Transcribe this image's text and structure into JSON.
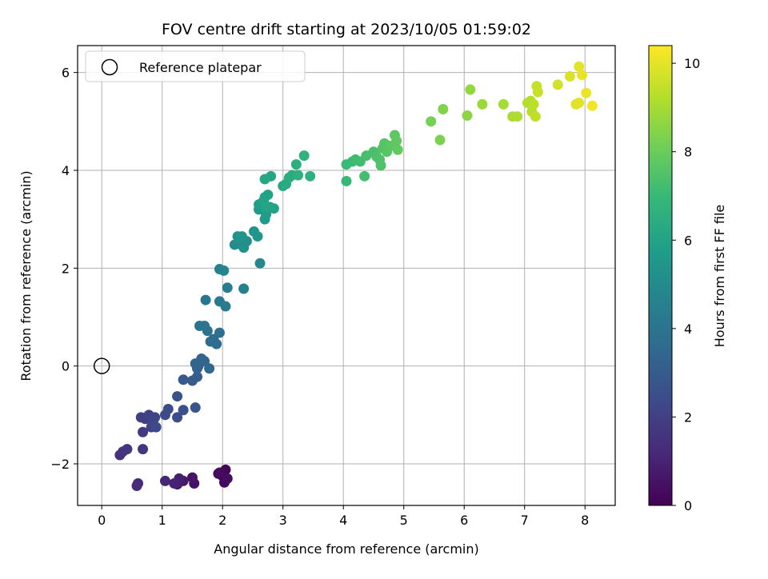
{
  "chart_data": {
    "type": "scatter",
    "title": "FOV centre drift starting at 2023/10/05 01:59:02",
    "xlabel": "Angular distance from reference (arcmin)",
    "ylabel": "Rotation from reference (arcmin)",
    "xlim": [
      -0.4,
      8.5
    ],
    "ylim": [
      -2.85,
      6.55
    ],
    "x_ticks": [
      0,
      1,
      2,
      3,
      4,
      5,
      6,
      7,
      8
    ],
    "y_ticks": [
      -2,
      0,
      2,
      4,
      6
    ],
    "y_tick_labels": [
      "−2",
      "0",
      "2",
      "4",
      "6"
    ],
    "grid": true,
    "legend": {
      "location": "upper-left",
      "entries": [
        "Reference platepar"
      ]
    },
    "reference_point": {
      "x": 0,
      "y": 0,
      "label": "Reference platepar",
      "marker": "hollow-circle"
    },
    "colorbar": {
      "label": "Hours from first FF file",
      "range": [
        0,
        10.4
      ],
      "ticks": [
        0,
        2,
        4,
        6,
        8,
        10
      ],
      "colormap": "viridis",
      "colors": [
        "#440154",
        "#482878",
        "#3e4989",
        "#31688e",
        "#26828e",
        "#1f9e89",
        "#35b779",
        "#6ece58",
        "#b5de2b",
        "#fde725"
      ]
    },
    "series": [
      {
        "color_by": "hours",
        "points": [
          [
            1.93,
            -2.2,
            0.05
          ],
          [
            2.0,
            -2.25,
            0.1
          ],
          [
            2.05,
            -2.12,
            0.15
          ],
          [
            2.03,
            -2.38,
            0.2
          ],
          [
            1.95,
            -2.18,
            0.3
          ],
          [
            2.08,
            -2.3,
            0.35
          ],
          [
            1.53,
            -2.4,
            0.5
          ],
          [
            1.5,
            -2.28,
            0.6
          ],
          [
            1.35,
            -2.35,
            0.7
          ],
          [
            1.25,
            -2.42,
            0.8
          ],
          [
            1.28,
            -2.3,
            0.9
          ],
          [
            1.2,
            -2.4,
            1.0
          ],
          [
            1.05,
            -2.35,
            1.1
          ],
          [
            0.6,
            -2.4,
            1.2
          ],
          [
            0.58,
            -2.45,
            1.3
          ],
          [
            0.3,
            -1.82,
            1.5
          ],
          [
            0.35,
            -1.75,
            1.55
          ],
          [
            0.42,
            -1.7,
            1.6
          ],
          [
            0.68,
            -1.7,
            1.7
          ],
          [
            0.68,
            -1.35,
            1.8
          ],
          [
            0.72,
            -1.08,
            1.9
          ],
          [
            0.65,
            -1.05,
            2.0
          ],
          [
            0.78,
            -1.0,
            2.05
          ],
          [
            0.82,
            -1.25,
            2.1
          ],
          [
            0.88,
            -1.05,
            2.15
          ],
          [
            0.85,
            -1.15,
            2.2
          ],
          [
            0.9,
            -1.25,
            2.3
          ],
          [
            1.05,
            -1.0,
            2.35
          ],
          [
            1.1,
            -0.88,
            2.4
          ],
          [
            1.25,
            -1.05,
            2.5
          ],
          [
            1.35,
            -0.9,
            2.55
          ],
          [
            1.25,
            -0.62,
            2.65
          ],
          [
            1.55,
            -0.85,
            2.75
          ],
          [
            1.35,
            -0.28,
            2.9
          ],
          [
            1.5,
            -0.3,
            3.0
          ],
          [
            1.58,
            -0.22,
            3.1
          ],
          [
            1.58,
            -0.05,
            3.2
          ],
          [
            1.6,
            0.0,
            3.25
          ],
          [
            1.55,
            0.05,
            3.3
          ],
          [
            1.65,
            0.15,
            3.35
          ],
          [
            1.7,
            0.1,
            3.4
          ],
          [
            1.78,
            -0.05,
            3.5
          ],
          [
            1.8,
            0.5,
            3.6
          ],
          [
            1.85,
            0.55,
            3.65
          ],
          [
            1.9,
            0.45,
            3.7
          ],
          [
            1.95,
            0.68,
            3.8
          ],
          [
            1.75,
            0.72,
            3.85
          ],
          [
            1.7,
            0.82,
            3.95
          ],
          [
            1.62,
            0.82,
            4.0
          ],
          [
            1.72,
            1.35,
            4.1
          ],
          [
            1.95,
            1.32,
            4.2
          ],
          [
            2.05,
            1.22,
            4.3
          ],
          [
            2.08,
            1.6,
            4.4
          ],
          [
            2.35,
            1.58,
            4.5
          ],
          [
            1.95,
            1.98,
            4.6
          ],
          [
            2.02,
            1.95,
            4.7
          ],
          [
            2.62,
            2.1,
            4.85
          ],
          [
            2.25,
            2.5,
            5.0
          ],
          [
            2.2,
            2.48,
            5.05
          ],
          [
            2.28,
            2.58,
            5.1
          ],
          [
            2.35,
            2.42,
            5.2
          ],
          [
            2.4,
            2.55,
            5.25
          ],
          [
            2.25,
            2.65,
            5.3
          ],
          [
            2.32,
            2.65,
            5.35
          ],
          [
            2.52,
            2.75,
            5.4
          ],
          [
            2.58,
            2.65,
            5.45
          ],
          [
            2.6,
            3.2,
            5.6
          ],
          [
            2.65,
            3.3,
            5.65
          ],
          [
            2.7,
            3.0,
            5.7
          ],
          [
            2.72,
            3.1,
            5.75
          ],
          [
            2.78,
            3.25,
            5.8
          ],
          [
            2.6,
            3.3,
            5.85
          ],
          [
            2.7,
            3.45,
            5.9
          ],
          [
            2.75,
            3.5,
            5.95
          ],
          [
            2.85,
            3.22,
            6.0
          ],
          [
            2.68,
            3.38,
            6.05
          ],
          [
            2.73,
            3.25,
            6.1
          ],
          [
            2.8,
            3.88,
            6.15
          ],
          [
            2.7,
            3.82,
            6.2
          ],
          [
            3.0,
            3.68,
            6.3
          ],
          [
            3.05,
            3.72,
            6.35
          ],
          [
            3.1,
            3.85,
            6.4
          ],
          [
            3.15,
            3.9,
            6.45
          ],
          [
            3.22,
            4.12,
            6.5
          ],
          [
            3.25,
            3.9,
            6.55
          ],
          [
            3.45,
            3.88,
            6.6
          ],
          [
            3.35,
            4.3,
            6.7
          ],
          [
            4.05,
            3.78,
            7.0
          ],
          [
            4.05,
            4.12,
            7.05
          ],
          [
            4.15,
            4.18,
            7.1
          ],
          [
            4.2,
            4.22,
            7.15
          ],
          [
            4.28,
            4.18,
            7.2
          ],
          [
            4.35,
            3.88,
            7.25
          ],
          [
            4.38,
            4.3,
            7.3
          ],
          [
            4.5,
            4.38,
            7.35
          ],
          [
            4.55,
            4.28,
            7.4
          ],
          [
            4.6,
            4.22,
            7.45
          ],
          [
            4.62,
            4.1,
            7.5
          ],
          [
            4.65,
            4.45,
            7.55
          ],
          [
            4.68,
            4.55,
            7.6
          ],
          [
            4.72,
            4.38,
            7.65
          ],
          [
            4.78,
            4.5,
            7.7
          ],
          [
            4.85,
            4.72,
            7.75
          ],
          [
            4.88,
            4.6,
            7.8
          ],
          [
            4.9,
            4.42,
            7.85
          ],
          [
            5.45,
            5.0,
            8.2
          ],
          [
            5.6,
            4.62,
            8.3
          ],
          [
            5.65,
            5.25,
            8.4
          ],
          [
            6.05,
            5.12,
            8.6
          ],
          [
            6.1,
            5.65,
            8.7
          ],
          [
            6.3,
            5.35,
            8.8
          ],
          [
            6.65,
            5.35,
            9.0
          ],
          [
            6.8,
            5.1,
            9.1
          ],
          [
            6.88,
            5.1,
            9.15
          ],
          [
            7.05,
            5.38,
            9.2
          ],
          [
            7.1,
            5.42,
            9.25
          ],
          [
            7.12,
            5.2,
            9.3
          ],
          [
            7.15,
            5.35,
            9.35
          ],
          [
            7.18,
            5.1,
            9.4
          ],
          [
            7.2,
            5.72,
            9.5
          ],
          [
            7.22,
            5.6,
            9.55
          ],
          [
            7.55,
            5.75,
            9.7
          ],
          [
            7.75,
            5.92,
            9.8
          ],
          [
            7.85,
            5.35,
            9.9
          ],
          [
            7.9,
            5.38,
            9.95
          ],
          [
            7.9,
            6.12,
            10.0
          ],
          [
            7.95,
            5.95,
            10.05
          ],
          [
            8.02,
            5.58,
            10.1
          ],
          [
            8.12,
            5.32,
            10.2
          ]
        ]
      }
    ]
  }
}
